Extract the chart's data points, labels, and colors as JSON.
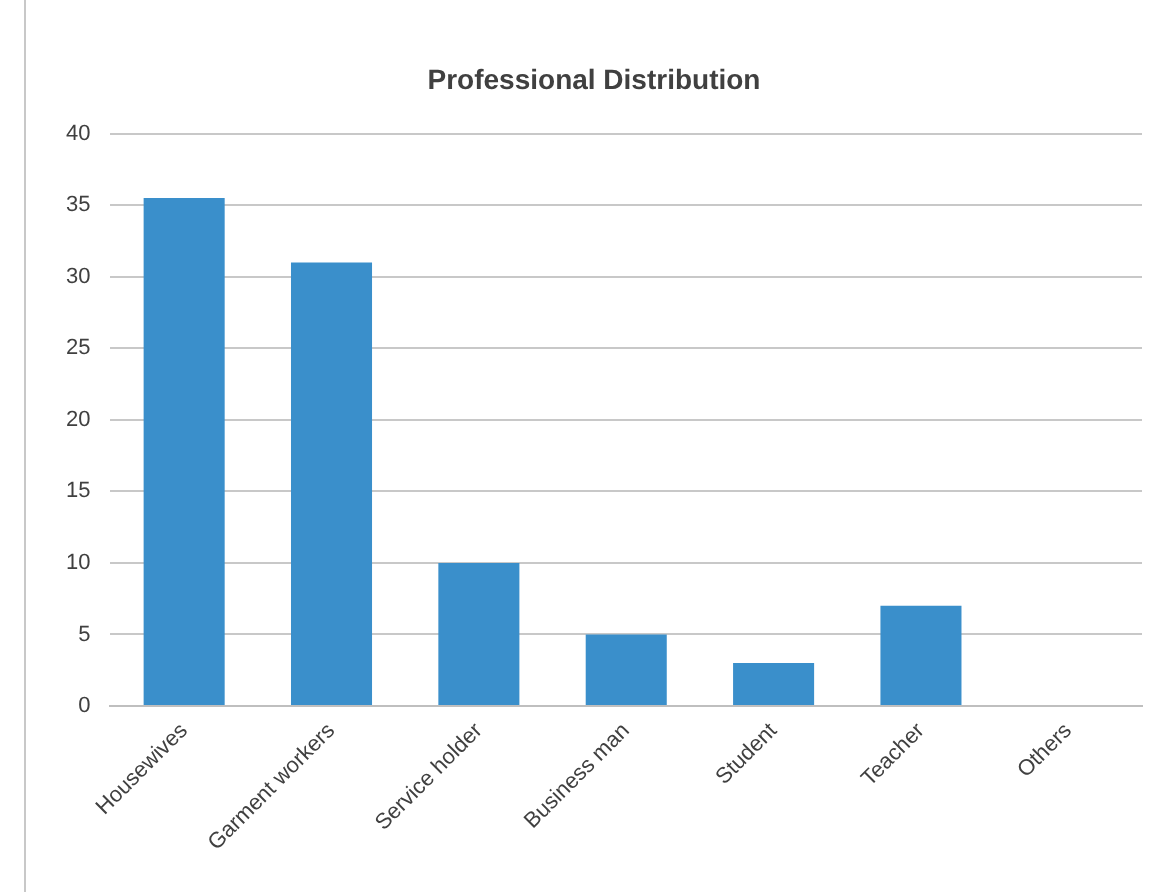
{
  "chart_data": {
    "type": "bar",
    "title": "Professional Distribution",
    "categories": [
      "Housewives",
      "Garment workers",
      "Service holder",
      "Business man",
      "Student",
      "Teacher",
      "Others"
    ],
    "values": [
      35.5,
      31,
      10,
      5,
      3,
      7,
      0
    ],
    "color": "#3a8fcb",
    "ylim": [
      0,
      40
    ],
    "yticks": [
      0,
      5,
      10,
      15,
      20,
      25,
      30,
      35,
      40
    ],
    "grid": "y",
    "legend": false
  }
}
